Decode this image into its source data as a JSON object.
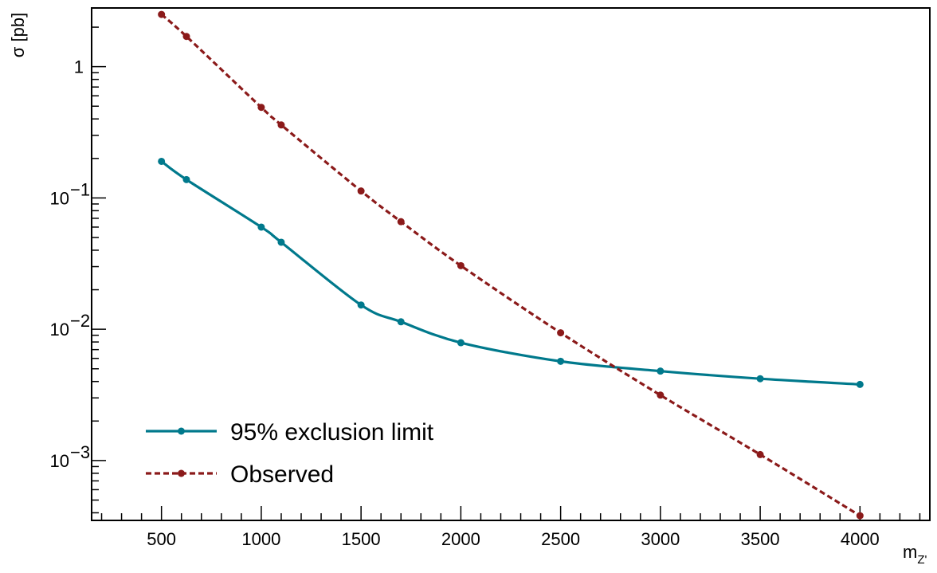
{
  "chart_data": {
    "type": "line",
    "title": "",
    "xlabel": "m",
    "xlabel_sub": "Z'",
    "ylabel": "σ [pb]",
    "xlim": [
      150,
      4350
    ],
    "ylim": [
      0.00035,
      2.8
    ],
    "y_scale": "log",
    "x_ticks": [
      500,
      1000,
      1500,
      2000,
      2500,
      3000,
      3500,
      4000
    ],
    "x_tick_labels": [
      "500",
      "1000",
      "1500",
      "2000",
      "2500",
      "3000",
      "3500",
      "4000"
    ],
    "y_tick_labels": [
      {
        "value": 1,
        "base": "1",
        "exp": ""
      },
      {
        "value": 0.1,
        "base": "10",
        "exp": "−1"
      },
      {
        "value": 0.01,
        "base": "10",
        "exp": "−2"
      },
      {
        "value": 0.001,
        "base": "10",
        "exp": "−3"
      }
    ],
    "grid": false,
    "legend_position": "bottom-left",
    "series": [
      {
        "name": "95% exclusion limit",
        "color": "#00798c",
        "style": "solid",
        "x": [
          500,
          625,
          1000,
          1100,
          1500,
          1700,
          2000,
          2500,
          3000,
          3500,
          4000
        ],
        "y": [
          0.19,
          0.138,
          0.06,
          0.046,
          0.0153,
          0.0114,
          0.0079,
          0.0057,
          0.0048,
          0.0042,
          0.0038
        ]
      },
      {
        "name": "Observed",
        "color": "#8b1a1a",
        "style": "dashed",
        "x": [
          500,
          625,
          1000,
          1100,
          1500,
          1700,
          2000,
          2500,
          3000,
          3500,
          4000
        ],
        "y": [
          2.5,
          1.7,
          0.49,
          0.36,
          0.113,
          0.066,
          0.0305,
          0.0094,
          0.00315,
          0.00111,
          0.00038
        ]
      }
    ]
  }
}
